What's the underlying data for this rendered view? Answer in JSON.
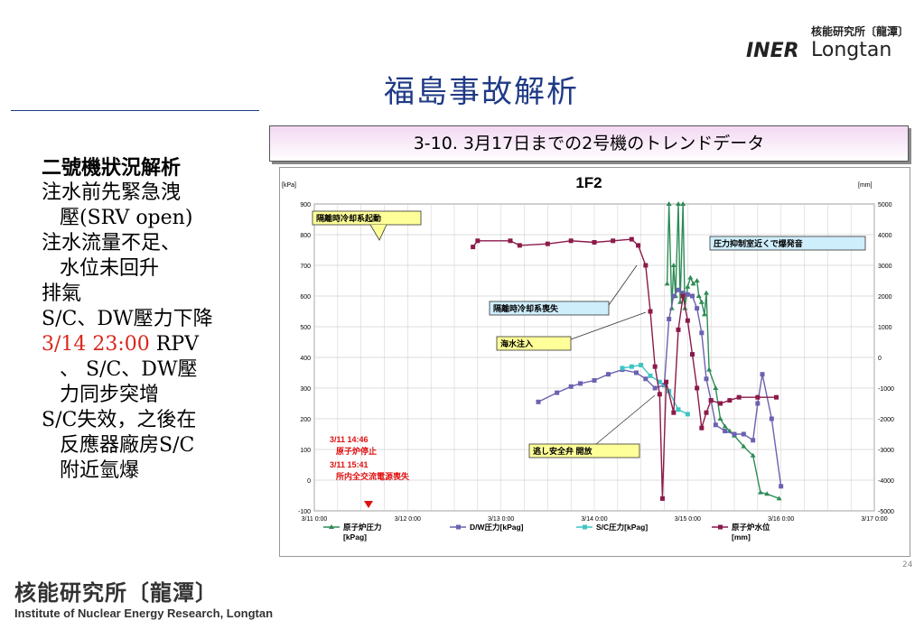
{
  "header": {
    "title": "福島事故解析",
    "logo_cn": "核能研究所〔龍潭〕",
    "logo_mark": "INER",
    "logo_en": "Longtan"
  },
  "left": {
    "heading": "二號機狀況解析",
    "items": [
      {
        "l1": "注水前先緊急洩",
        "l2": "壓(SRV open)"
      },
      {
        "l1": "注水流量不足、",
        "l2": "水位未回升"
      },
      {
        "l1": "排氣",
        "l2": ""
      },
      {
        "l1": "S/C、DW壓力下降",
        "l2": ""
      }
    ],
    "item5_red": "3/14 23:00",
    "item5_rest": " RPV",
    "item5_l2": "、 S/C、DW壓",
    "item5_l3": "力同步突增",
    "item6_l1": "S/C失效，之後在",
    "item6_l2": "反應器廠房S/C",
    "item6_l3": "附近氫爆"
  },
  "banner": "3-10. 3月17日までの2号機のトレンドデータ",
  "page_number": "24",
  "footer": {
    "cn": "核能研究所〔龍潭〕",
    "en": "Institute of Nuclear Energy Research, Longtan"
  },
  "colors": {
    "rpv_pressure": "#2e8b57",
    "dw_pressure": "#6a62b0",
    "sc_pressure": "#3fc4c4",
    "water_level": "#8b1a4a",
    "callout": "#ffff99",
    "callout2": "#cfeefc",
    "event_red": "#e01010"
  },
  "chart_data": {
    "type": "line",
    "title": "1F2",
    "left_unit": "[kPa]",
    "right_unit": "[mm]",
    "x": [
      "3/11 0:00",
      "3/12 0:00",
      "3/13 0:00",
      "3/14 0:00",
      "3/15 0:00",
      "3/16 0:00",
      "3/17 0:00"
    ],
    "ylim": [
      -100,
      900
    ],
    "y_ticks": [
      "900",
      "800",
      "700",
      "600",
      "500",
      "400",
      "300",
      "200",
      "100",
      "0",
      "-100"
    ],
    "y2lim": [
      -5000,
      5000
    ],
    "y2_ticks": [
      "5000",
      "4000",
      "3000",
      "2000",
      "1000",
      "0",
      "-1000",
      "-2000",
      "-3000",
      "-4000",
      "-5000"
    ],
    "grid": true,
    "legend_position": "bottom",
    "legend": [
      {
        "l1": "原子炉圧力",
        "l2": "[kPag]"
      },
      {
        "l1": "D/W圧力[kPag]",
        "l2": ""
      },
      {
        "l1": "S/C圧力[kPag]",
        "l2": ""
      },
      {
        "l1": "原子炉水位",
        "l2": "[mm]"
      }
    ],
    "annotations": {
      "a1": "隔離時冷却系起動",
      "a2": "圧力抑制室近くで爆発音",
      "a3": "隔離時冷却系喪失",
      "a4": "海水注入",
      "a5": "逃し安全弁 開放",
      "e1": "3/11 14:46",
      "e2": "原子炉停止",
      "e3": "3/11 15:41",
      "e4": "所内全交流電源喪失"
    },
    "series": [
      {
        "name": "原子炉圧力 [kPag]",
        "axis": "left",
        "points": [
          [
            3.78,
            640
          ],
          [
            3.8,
            900
          ],
          [
            3.83,
            560
          ],
          [
            3.85,
            700
          ],
          [
            3.87,
            600
          ],
          [
            3.9,
            900
          ],
          [
            3.92,
            580
          ],
          [
            3.95,
            900
          ],
          [
            3.97,
            560
          ],
          [
            4.0,
            630
          ],
          [
            4.03,
            660
          ],
          [
            4.06,
            640
          ],
          [
            4.1,
            650
          ],
          [
            4.12,
            600
          ],
          [
            4.15,
            580
          ],
          [
            4.18,
            540
          ],
          [
            4.2,
            610
          ],
          [
            4.23,
            360
          ],
          [
            4.3,
            300
          ],
          [
            4.35,
            200
          ],
          [
            4.4,
            175
          ],
          [
            4.45,
            160
          ],
          [
            4.5,
            145
          ],
          [
            4.6,
            110
          ],
          [
            4.7,
            80
          ],
          [
            4.78,
            -40
          ],
          [
            4.85,
            -45
          ],
          [
            4.98,
            -60
          ]
        ]
      },
      {
        "name": "D/W圧力[kPag]",
        "axis": "left",
        "points": [
          [
            2.4,
            255
          ],
          [
            2.6,
            285
          ],
          [
            2.75,
            305
          ],
          [
            2.85,
            315
          ],
          [
            3.0,
            325
          ],
          [
            3.15,
            345
          ],
          [
            3.3,
            360
          ],
          [
            3.45,
            350
          ],
          [
            3.55,
            330
          ],
          [
            3.65,
            300
          ],
          [
            3.75,
            310
          ],
          [
            3.8,
            525
          ],
          [
            3.85,
            600
          ],
          [
            3.9,
            620
          ],
          [
            3.95,
            610
          ],
          [
            4.0,
            605
          ],
          [
            4.05,
            600
          ],
          [
            4.1,
            560
          ],
          [
            4.15,
            480
          ],
          [
            4.2,
            330
          ],
          [
            4.25,
            260
          ],
          [
            4.3,
            180
          ],
          [
            4.4,
            160
          ],
          [
            4.5,
            150
          ],
          [
            4.6,
            150
          ],
          [
            4.7,
            130
          ],
          [
            4.75,
            250
          ],
          [
            4.8,
            345
          ],
          [
            4.9,
            200
          ],
          [
            5.0,
            -20
          ]
        ]
      },
      {
        "name": "S/C圧力[kPag]",
        "axis": "left",
        "points": [
          [
            3.3,
            365
          ],
          [
            3.4,
            370
          ],
          [
            3.5,
            375
          ],
          [
            3.6,
            340
          ],
          [
            3.7,
            320
          ],
          [
            3.8,
            290
          ],
          [
            3.9,
            230
          ],
          [
            4.0,
            215
          ]
        ]
      },
      {
        "name": "原子炉水位[mm]",
        "axis": "right",
        "points": [
          [
            1.7,
            3600
          ],
          [
            1.75,
            3800
          ],
          [
            2.1,
            3800
          ],
          [
            2.2,
            3650
          ],
          [
            2.5,
            3700
          ],
          [
            2.75,
            3800
          ],
          [
            3.0,
            3750
          ],
          [
            3.2,
            3800
          ],
          [
            3.4,
            3850
          ],
          [
            3.47,
            3650
          ],
          [
            3.55,
            3000
          ],
          [
            3.6,
            1500
          ],
          [
            3.65,
            -300
          ],
          [
            3.7,
            -1200
          ],
          [
            3.73,
            -4600
          ],
          [
            3.77,
            -800
          ],
          [
            3.85,
            -1800
          ],
          [
            3.9,
            900
          ],
          [
            3.95,
            2000
          ],
          [
            4.0,
            1200
          ],
          [
            4.05,
            100
          ],
          [
            4.1,
            -1000
          ],
          [
            4.15,
            -2300
          ],
          [
            4.2,
            -1800
          ],
          [
            4.25,
            -1400
          ],
          [
            4.35,
            -1500
          ],
          [
            4.45,
            -1400
          ],
          [
            4.55,
            -1300
          ],
          [
            4.75,
            -1300
          ],
          [
            4.95,
            -1300
          ]
        ]
      }
    ]
  }
}
